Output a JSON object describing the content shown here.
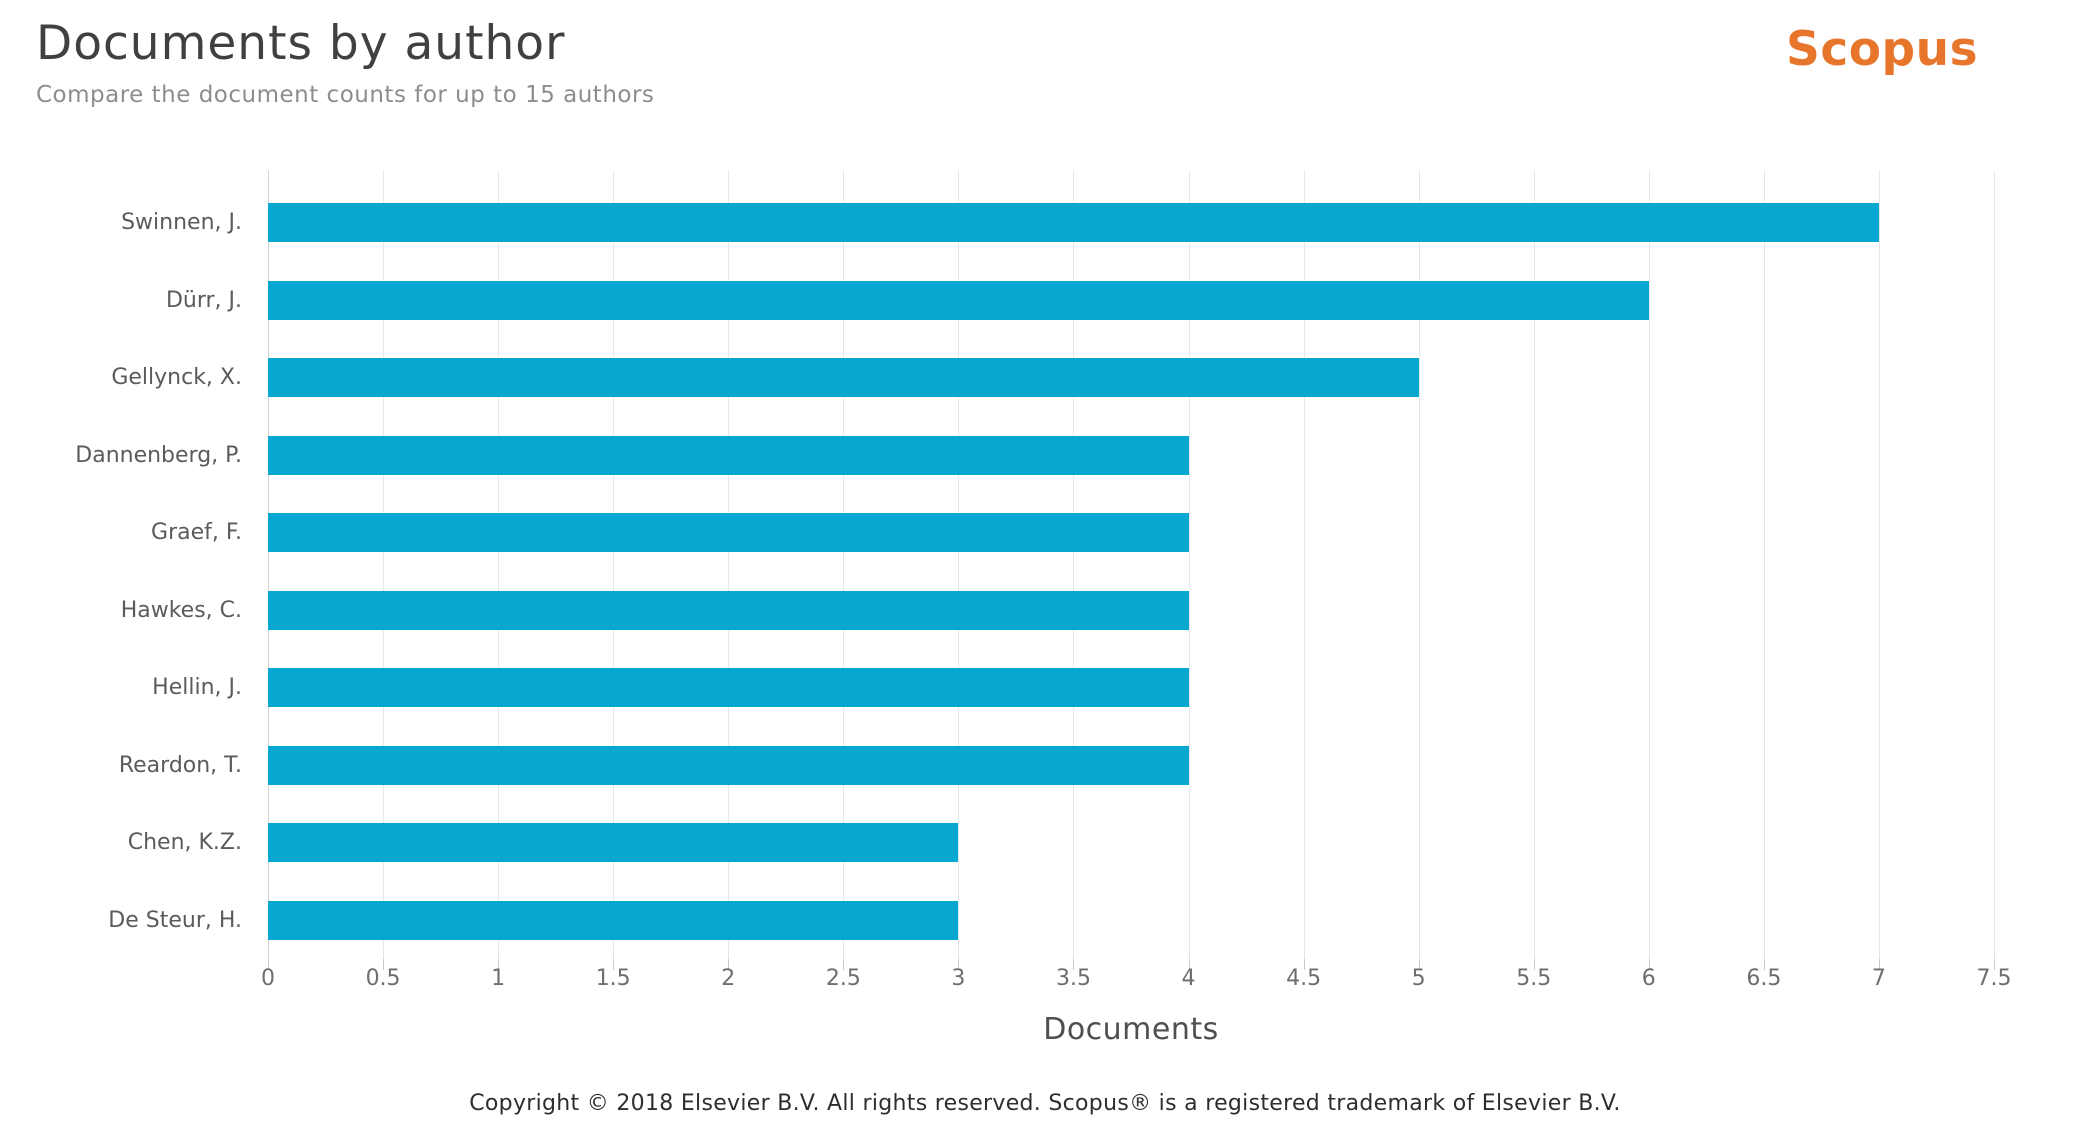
{
  "header": {
    "title": "Documents by author",
    "subtitle": "Compare the document counts for up to 15 authors",
    "logo_text": "Scopus",
    "logo_color": "#e8752c"
  },
  "chart_data": {
    "type": "bar",
    "orientation": "horizontal",
    "title": "Documents by author",
    "subtitle": "Compare the document counts for up to 15 authors",
    "categories": [
      "Swinnen, J.",
      "Dürr, J.",
      "Gellynck, X.",
      "Dannenberg, P.",
      "Graef, F.",
      "Hawkes, C.",
      "Hellin, J.",
      "Reardon, T.",
      "Chen, K.Z.",
      "De Steur, H."
    ],
    "values": [
      7,
      6,
      5,
      4,
      4,
      4,
      4,
      4,
      3,
      3
    ],
    "xlabel": "Documents",
    "ylabel": "",
    "xlim": [
      0,
      7.5
    ],
    "xticks": [
      "0",
      "0.5",
      "1",
      "1.5",
      "2",
      "2.5",
      "3",
      "3.5",
      "4",
      "4.5",
      "5",
      "5.5",
      "6",
      "6.5",
      "7",
      "7.5"
    ],
    "grid": true,
    "legend": false,
    "bar_color": "#06a8d2",
    "gridline_color": "#e7e7e7",
    "axis_line_color": "#d4d4d4"
  },
  "footer": {
    "copyright": "Copyright © 2018 Elsevier B.V. All rights reserved. Scopus® is a registered trademark of Elsevier B.V."
  }
}
